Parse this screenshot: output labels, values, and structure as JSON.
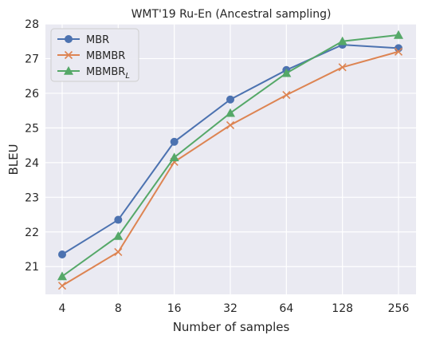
{
  "chart_data": {
    "type": "line",
    "title": "WMT'19 Ru-En (Ancestral sampling)",
    "xlabel": "Number of samples",
    "ylabel": "BLEU",
    "categories": [
      "4",
      "8",
      "16",
      "32",
      "64",
      "128",
      "256"
    ],
    "ylim": [
      20.2,
      28
    ],
    "yticks": [
      21,
      22,
      23,
      24,
      25,
      26,
      27,
      28
    ],
    "grid": true,
    "legend_position": "top-left",
    "series": [
      {
        "name": "MBR",
        "name_subscript": "",
        "color": "#4c72b0",
        "marker": "circle",
        "values": [
          21.35,
          22.35,
          24.6,
          25.82,
          26.67,
          27.4,
          27.3
        ]
      },
      {
        "name": "MBMBR",
        "name_subscript": "",
        "color": "#dd8452",
        "marker": "x",
        "values": [
          20.45,
          21.42,
          24.02,
          25.08,
          25.95,
          26.75,
          27.2
        ]
      },
      {
        "name": "MBMBR",
        "name_subscript": "L",
        "color": "#55a868",
        "marker": "triangle",
        "values": [
          20.72,
          21.88,
          24.15,
          25.43,
          26.58,
          27.5,
          27.68
        ]
      }
    ]
  },
  "colors": {
    "plot_background": "#eaeaf2",
    "grid": "#ffffff"
  }
}
